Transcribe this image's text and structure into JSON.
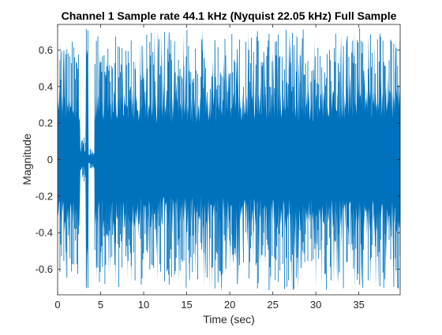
{
  "chart_data": {
    "type": "line",
    "title": "Channel 1 Sample rate 44.1 kHz (Nyquist 22.05 kHz) Full Sample",
    "xlabel": "Time (sec)",
    "ylabel": "Magnitude",
    "xlim": [
      0,
      39.8
    ],
    "ylim": [
      -0.74,
      0.74
    ],
    "x_ticks": [
      0,
      5,
      10,
      15,
      20,
      25,
      30,
      35
    ],
    "y_ticks": [
      -0.6,
      -0.4,
      -0.2,
      0,
      0.2,
      0.4,
      0.6
    ],
    "grid": false,
    "series": [
      {
        "color": "#0072BD",
        "envelope_segments": [
          {
            "x_start": 0.0,
            "x_end": 2.6,
            "amplitude": 0.37,
            "peak": 0.65
          },
          {
            "x_start": 2.6,
            "x_end": 3.3,
            "amplitude": 0.06,
            "peak": 0.12
          },
          {
            "x_start": 3.3,
            "x_end": 3.6,
            "amplitude": 0.7,
            "peak": 0.72
          },
          {
            "x_start": 3.6,
            "x_end": 4.3,
            "amplitude": 0.03,
            "peak": 0.06
          },
          {
            "x_start": 4.3,
            "x_end": 9.0,
            "amplitude": 0.38,
            "peak": 0.7
          },
          {
            "x_start": 9.0,
            "x_end": 20.0,
            "amplitude": 0.36,
            "peak": 0.72
          },
          {
            "x_start": 20.0,
            "x_end": 33.0,
            "amplitude": 0.38,
            "peak": 0.72
          },
          {
            "x_start": 33.0,
            "x_end": 39.8,
            "amplitude": 0.4,
            "peak": 0.72
          }
        ]
      }
    ]
  }
}
